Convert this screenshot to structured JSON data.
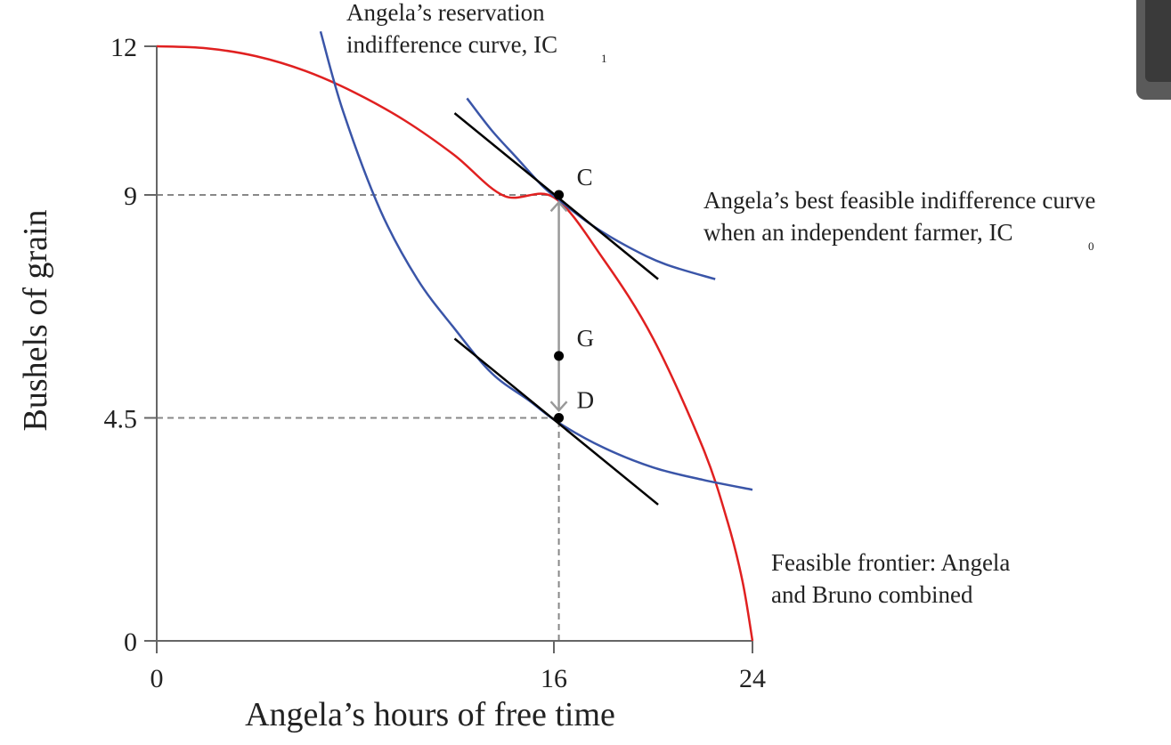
{
  "chart_data": {
    "type": "line",
    "xlabel": "Angela’s hours of free time",
    "ylabel": "Bushels of grain",
    "xlim": [
      0,
      24
    ],
    "ylim": [
      0,
      12
    ],
    "x_ticks": [
      {
        "value": 0,
        "label": "0"
      },
      {
        "value": 16,
        "label": "16"
      },
      {
        "value": 24,
        "label": "24"
      }
    ],
    "y_ticks": [
      {
        "value": 0,
        "label": "0"
      },
      {
        "value": 4.5,
        "label": "4.5"
      },
      {
        "value": 9,
        "label": "9"
      },
      {
        "value": 12,
        "label": "12"
      }
    ],
    "colors": {
      "frontier": "#e02020",
      "indifference": "#3a55a8",
      "tangent": "#000000",
      "axis": "#666666",
      "guide": "#888888",
      "arrow": "#999999"
    },
    "series": [
      {
        "name": "Feasible frontier",
        "color": "#e02020",
        "x": [
          0,
          2,
          4,
          6,
          8,
          10,
          12,
          14,
          16,
          18,
          20,
          22,
          23,
          23.6,
          24
        ],
        "y": [
          12,
          11.96,
          11.8,
          11.5,
          11.06,
          10.5,
          9.8,
          8.98,
          8.95,
          7.7,
          6.1,
          3.9,
          2.4,
          1.2,
          0
        ]
      },
      {
        "name": "IC1 reservation indifference curve",
        "color": "#3a55a8",
        "x": [
          6.6,
          7.5,
          9,
          10.5,
          12,
          13.5,
          15,
          16.2,
          18,
          20,
          22,
          24
        ],
        "y": [
          12.3,
          10.7,
          8.7,
          7.3,
          6.3,
          5.4,
          4.85,
          4.4,
          3.9,
          3.5,
          3.25,
          3.05
        ]
      },
      {
        "name": "IC0 best feasible indifference curve",
        "color": "#3a55a8",
        "x": [
          12.5,
          13.5,
          14.5,
          15.5,
          16.2,
          17.5,
          19,
          20.5,
          22.5
        ],
        "y": [
          10.95,
          10.3,
          9.75,
          9.2,
          8.9,
          8.4,
          7.95,
          7.6,
          7.3
        ]
      }
    ],
    "tangent_lines": [
      {
        "name": "tangent-at-C",
        "x": [
          12,
          20.2
        ],
        "y": [
          10.65,
          7.3
        ]
      },
      {
        "name": "tangent-at-D",
        "x": [
          12,
          20.2
        ],
        "y": [
          6.1,
          2.75
        ]
      }
    ],
    "points": [
      {
        "label": "C",
        "x": 16.2,
        "y": 9
      },
      {
        "label": "G",
        "x": 16.2,
        "y": 5.75
      },
      {
        "label": "D",
        "x": 16.2,
        "y": 4.5
      }
    ],
    "guides": [
      {
        "from": [
          0,
          9
        ],
        "to": [
          16.2,
          9
        ]
      },
      {
        "from": [
          0,
          4.5
        ],
        "to": [
          16.2,
          4.5
        ]
      },
      {
        "from": [
          16.2,
          0
        ],
        "to": [
          16.2,
          4.5
        ]
      }
    ],
    "arrow": {
      "from": [
        16.2,
        8.85
      ],
      "to": [
        16.2,
        4.65
      ],
      "double_headed": true
    },
    "annotations": {
      "ic1": {
        "line1": "Angela’s reservation",
        "line2": "indifference curve, IC",
        "sub": "1"
      },
      "ic0": {
        "line1": "Angela’s best feasible indifference curve",
        "line2": "when an independent farmer, IC",
        "sub": "0"
      },
      "frontier": {
        "line1": "Feasible frontier: Angela",
        "line2": "and Bruno combined"
      }
    }
  }
}
